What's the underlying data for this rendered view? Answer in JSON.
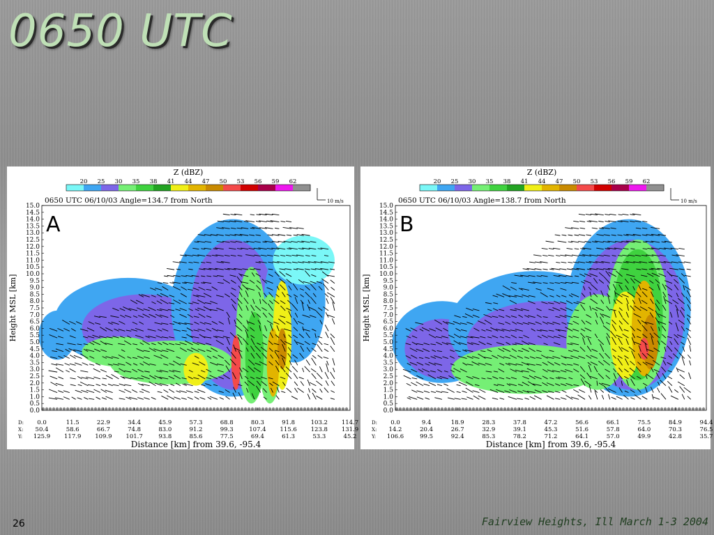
{
  "slide": {
    "title": "0650 UTC",
    "page_number": "26",
    "footer": "Fairview Heights, Ill March 1-3 2004"
  },
  "chart_data": [
    {
      "type": "heatmap",
      "panel_label": "A",
      "title": "0650 UTC   06/10/03   Angle=134.7 from North",
      "colorbar": {
        "title": "Z (dBZ)",
        "levels": [
          "20",
          "25",
          "30",
          "35",
          "38",
          "41",
          "44",
          "47",
          "50",
          "53",
          "56",
          "59",
          "62"
        ],
        "colors": [
          "#7af7f7",
          "#3fa6f2",
          "#7d66e8",
          "#75ef75",
          "#3fd23f",
          "#22a322",
          "#f0ef17",
          "#e2b400",
          "#c98a00",
          "#f44a4a",
          "#d10000",
          "#a8004a",
          "#ee18ee",
          "#909090"
        ]
      },
      "vector_scale": "10 m/s",
      "ylabel": "Height MSL [km]",
      "ylim": [
        0,
        15
      ],
      "y_ticks": [
        "0.0",
        "0.5",
        "1.0",
        "1.5",
        "2.0",
        "2.5",
        "3.0",
        "3.5",
        "4.0",
        "4.5",
        "5.0",
        "5.5",
        "6.0",
        "6.5",
        "7.0",
        "7.5",
        "8.0",
        "8.5",
        "9.0",
        "9.5",
        "10.0",
        "10.5",
        "11.0",
        "11.5",
        "12.0",
        "12.5",
        "13.0",
        "13.5",
        "14.0",
        "14.5",
        "15.0"
      ],
      "xlabel": "Distance [km] from 39.6, -95.4",
      "row_labels": [
        "D:",
        "X:",
        "Y:"
      ],
      "x_table": {
        "D": [
          "0.0",
          "11.5",
          "22.9",
          "34.4",
          "45.9",
          "57.3",
          "68.8",
          "80.3",
          "91.8",
          "103.2",
          "114.7"
        ],
        "X": [
          "50.4",
          "58.6",
          "66.7",
          "74.8",
          "83.0",
          "91.2",
          "99.3",
          "107.4",
          "115.6",
          "123.8",
          "131.9"
        ],
        "Y": [
          "125.9",
          "117.9",
          "109.9",
          "101.7",
          "93.8",
          "85.6",
          "77.5",
          "69.4",
          "61.3",
          "53.3",
          "45.2"
        ]
      }
    },
    {
      "type": "heatmap",
      "panel_label": "B",
      "title": "0650 UTC   06/10/03   Angle=138.7 from North",
      "colorbar": {
        "title": "Z (dBZ)",
        "levels": [
          "20",
          "25",
          "30",
          "35",
          "38",
          "41",
          "44",
          "47",
          "50",
          "53",
          "56",
          "59",
          "62"
        ],
        "colors": [
          "#7af7f7",
          "#3fa6f2",
          "#7d66e8",
          "#75ef75",
          "#3fd23f",
          "#22a322",
          "#f0ef17",
          "#e2b400",
          "#c98a00",
          "#f44a4a",
          "#d10000",
          "#a8004a",
          "#ee18ee",
          "#909090"
        ]
      },
      "vector_scale": "10 m/s",
      "ylabel": "Height MSL [km]",
      "ylim": [
        0,
        15
      ],
      "y_ticks": [
        "0.0",
        "0.5",
        "1.0",
        "1.5",
        "2.0",
        "2.5",
        "3.0",
        "3.5",
        "4.0",
        "4.5",
        "5.0",
        "5.5",
        "6.0",
        "6.5",
        "7.0",
        "7.5",
        "8.0",
        "8.5",
        "9.0",
        "9.5",
        "10.0",
        "10.5",
        "11.0",
        "11.5",
        "12.0",
        "12.5",
        "13.0",
        "13.5",
        "14.0",
        "14.5",
        "15.0"
      ],
      "xlabel": "Distance [km] from 39.6, -95.4",
      "row_labels": [
        "D:",
        "X:",
        "Y:"
      ],
      "x_table": {
        "D": [
          "0.0",
          "9.4",
          "18.9",
          "28.3",
          "37.8",
          "47.2",
          "56.6",
          "66.1",
          "75.5",
          "84.9",
          "94.4"
        ],
        "X": [
          "14.2",
          "20.4",
          "26.7",
          "32.9",
          "39.1",
          "45.3",
          "51.6",
          "57.8",
          "64.0",
          "70.3",
          "76.5"
        ],
        "Y": [
          "106.6",
          "99.5",
          "92.4",
          "85.3",
          "78.2",
          "71.2",
          "64.1",
          "57.0",
          "49.9",
          "42.8",
          "35.7"
        ]
      }
    }
  ]
}
